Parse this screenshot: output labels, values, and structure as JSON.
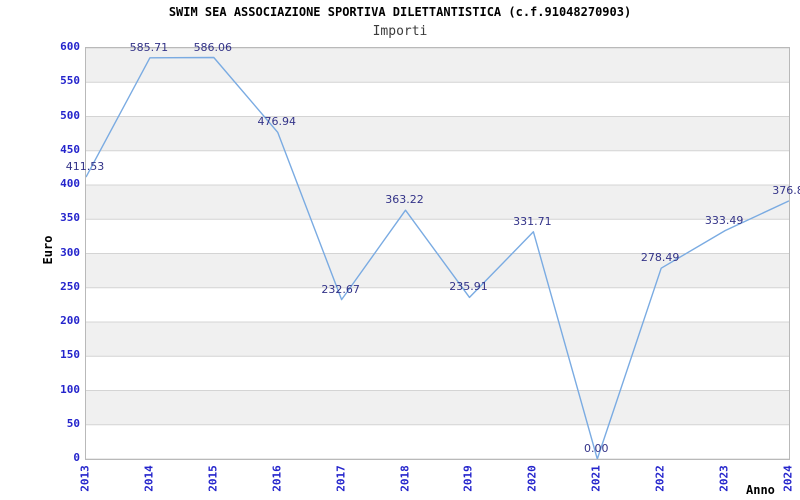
{
  "title": "SWIM SEA ASSOCIAZIONE SPORTIVA DILETTANTISTICA (c.f.91048270903)",
  "subtitle": "Importi",
  "chart_data": {
    "type": "line",
    "title": "SWIM SEA ASSOCIAZIONE SPORTIVA DILETTANTISTICA (c.f.91048270903)",
    "subtitle": "Importi",
    "xlabel": "Anno",
    "ylabel": "Euro",
    "categories": [
      "2013",
      "2014",
      "2015",
      "2016",
      "2017",
      "2018",
      "2019",
      "2020",
      "2021",
      "2022",
      "2023",
      "2024"
    ],
    "values": [
      411.53,
      585.71,
      586.06,
      476.94,
      232.67,
      363.22,
      235.91,
      331.71,
      0.0,
      278.49,
      333.49,
      376.8
    ],
    "point_labels": [
      "411.53",
      "585.71",
      "586.06",
      "476.94",
      "232.67",
      "363.22",
      "235.91",
      "331.71",
      "0.00",
      "278.49",
      "333.49",
      "376.8"
    ],
    "ylim": [
      0,
      600
    ],
    "ytick_step": 50,
    "grid": "horizontal-bands",
    "legend": "none",
    "colors": {
      "line": "#7aabe2",
      "point_label": "#333388",
      "tick_label": "#2424cc",
      "band": "#f0f0f0",
      "gridline": "#d4d4d4",
      "plot_border": "#b9b9b9",
      "title": "#000000",
      "subtitle": "#3c3c3c",
      "axis_title": "#000000"
    }
  }
}
